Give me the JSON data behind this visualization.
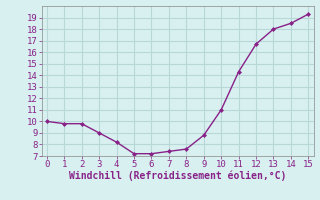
{
  "x": [
    0,
    1,
    2,
    3,
    4,
    5,
    6,
    7,
    8,
    9,
    10,
    11,
    12,
    13,
    14,
    15
  ],
  "y": [
    10.0,
    9.8,
    9.8,
    9.0,
    8.2,
    7.2,
    7.2,
    7.4,
    7.6,
    8.8,
    11.0,
    14.3,
    16.7,
    18.0,
    18.5,
    19.3
  ],
  "line_color": "#882288",
  "marker": "D",
  "marker_size": 2.0,
  "xlabel": "Windchill (Refroidissement éolien,°C)",
  "ylim": [
    7,
    20
  ],
  "xlim": [
    -0.3,
    15.3
  ],
  "yticks": [
    7,
    8,
    9,
    10,
    11,
    12,
    13,
    14,
    15,
    16,
    17,
    18,
    19
  ],
  "xticks": [
    0,
    1,
    2,
    3,
    4,
    5,
    6,
    7,
    8,
    9,
    10,
    11,
    12,
    13,
    14,
    15
  ],
  "bg_color": "#d8f0f0",
  "grid_color": "#b8d8d8",
  "tick_label_color": "#882288",
  "xlabel_color": "#882288",
  "xlabel_fontsize": 7,
  "tick_fontsize": 6.5,
  "line_width": 1.0
}
